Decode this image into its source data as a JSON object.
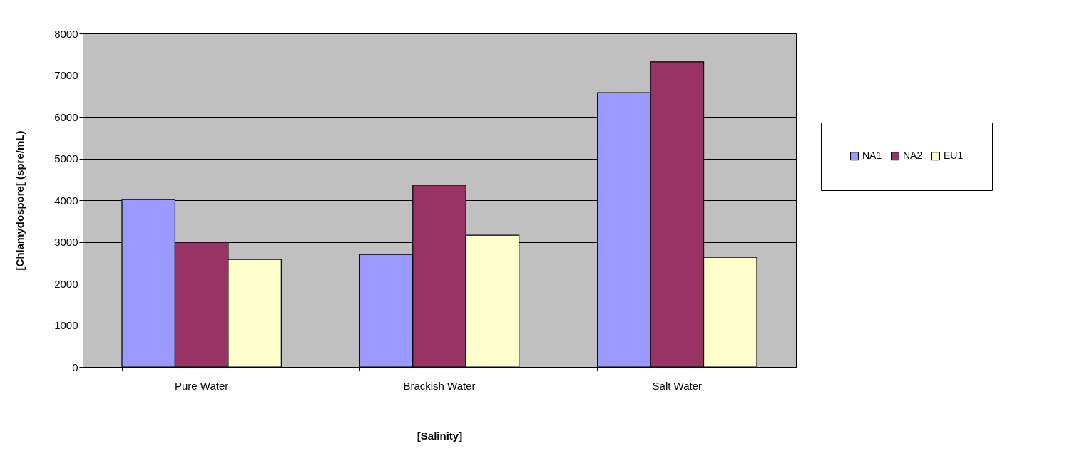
{
  "chart_data": {
    "type": "bar",
    "xlabel": "[Salinity]",
    "ylabel": "[Chlamydospore[ (spre/mL)",
    "categories": [
      "Pure Water",
      "Brackish Water",
      "Salt Water"
    ],
    "series": [
      {
        "name": "NA1",
        "color": "#9999ff",
        "values": [
          4020,
          2700,
          6580
        ]
      },
      {
        "name": "NA2",
        "color": "#993366",
        "values": [
          2990,
          4360,
          7320
        ]
      },
      {
        "name": "EU1",
        "color": "#ffffcc",
        "values": [
          2580,
          3160,
          2630
        ]
      }
    ],
    "ylim": [
      0,
      8000
    ],
    "yticks": [
      0,
      1000,
      2000,
      3000,
      4000,
      5000,
      6000,
      7000,
      8000
    ],
    "grid": "y",
    "legend": "right"
  }
}
